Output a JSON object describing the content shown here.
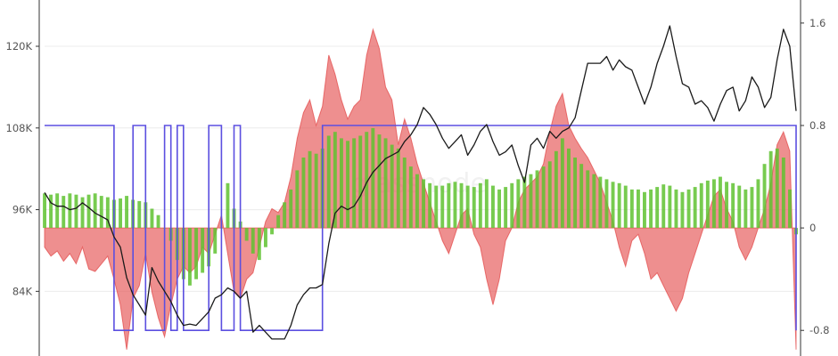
{
  "watermark": "glassnode",
  "colors": {
    "price": "#1a1a1a",
    "regime": "#5b4fe0",
    "fill_area": "#e34b4b",
    "bars": "#5fc230"
  },
  "chart_data": {
    "type": "line",
    "title": "",
    "xlabel": "",
    "ylabel": "",
    "grid": true,
    "legend": "none",
    "y_left": {
      "ticks": [
        84000,
        96000,
        108000,
        120000
      ],
      "tick_labels": [
        "84K",
        "96K",
        "108K",
        "120K"
      ],
      "range": [
        74500,
        126800
      ]
    },
    "y_right": {
      "ticks": [
        -0.8,
        0,
        0.8,
        1.6
      ],
      "tick_labels": [
        "-0.8",
        "0",
        "0.8",
        "1.6"
      ],
      "range": [
        -1.0,
        1.78
      ]
    },
    "x_count": 120,
    "series": [
      {
        "kind": "price_line",
        "axis": "left",
        "values": [
          98500,
          97000,
          96500,
          96500,
          96000,
          96200,
          97000,
          96300,
          95500,
          95000,
          94500,
          92000,
          90500,
          86000,
          83500,
          82000,
          80500,
          87500,
          85500,
          84000,
          82500,
          80500,
          79000,
          79200,
          79000,
          80000,
          81000,
          83000,
          83500,
          84500,
          84000,
          83000,
          84000,
          78000,
          79000,
          78000,
          77000,
          77000,
          77000,
          79000,
          82000,
          83500,
          84500,
          84500,
          85000,
          91000,
          95500,
          96500,
          96000,
          96500,
          98000,
          100000,
          101500,
          102500,
          103500,
          104000,
          104500,
          106000,
          107000,
          108500,
          111000,
          110000,
          108500,
          106500,
          105000,
          106000,
          107000,
          104000,
          105500,
          107500,
          108500,
          106000,
          104000,
          104500,
          105500,
          102500,
          100000,
          105500,
          106500,
          105000,
          107500,
          106500,
          107500,
          108000,
          109500,
          113500,
          117500,
          117500,
          117500,
          118500,
          116500,
          118000,
          117000,
          116500,
          114000,
          111500,
          114000,
          117500,
          120000,
          123000,
          118500,
          114500,
          114000,
          111500,
          112000,
          111000,
          109000,
          111500,
          113500,
          114000,
          110500,
          112000,
          115500,
          114000,
          111000,
          112500,
          118000,
          122500,
          120000,
          110500
        ]
      },
      {
        "kind": "red_area",
        "axis": "right",
        "values": [
          -0.15,
          -0.22,
          -0.18,
          -0.26,
          -0.2,
          -0.28,
          -0.15,
          -0.32,
          -0.34,
          -0.28,
          -0.22,
          -0.4,
          -0.6,
          -0.95,
          -0.55,
          -0.45,
          -0.2,
          -0.5,
          -0.7,
          -0.85,
          -0.6,
          -0.4,
          -0.3,
          -0.35,
          -0.3,
          -0.15,
          -0.2,
          -0.05,
          0.1,
          -0.2,
          -0.5,
          -0.55,
          -0.4,
          -0.35,
          -0.15,
          0.05,
          0.15,
          0.12,
          0.2,
          0.4,
          0.7,
          0.9,
          1.0,
          0.8,
          0.95,
          1.35,
          1.2,
          1.0,
          0.85,
          0.95,
          1.0,
          1.35,
          1.55,
          1.4,
          1.1,
          1.0,
          0.65,
          0.85,
          0.7,
          0.5,
          0.35,
          0.2,
          0.05,
          -0.1,
          -0.2,
          -0.05,
          0.1,
          0.15,
          -0.05,
          -0.15,
          -0.4,
          -0.6,
          -0.4,
          -0.1,
          0.0,
          0.2,
          0.3,
          0.35,
          0.4,
          0.5,
          0.75,
          0.95,
          1.05,
          0.8,
          0.7,
          0.62,
          0.55,
          0.45,
          0.35,
          0.2,
          0.05,
          -0.15,
          -0.3,
          -0.1,
          -0.05,
          -0.2,
          -0.4,
          -0.35,
          -0.45,
          -0.55,
          -0.65,
          -0.55,
          -0.35,
          -0.2,
          -0.05,
          0.1,
          0.25,
          0.3,
          0.15,
          0.05,
          -0.15,
          -0.25,
          -0.15,
          0.0,
          0.15,
          0.35,
          0.65,
          0.75,
          0.6,
          -0.95
        ]
      },
      {
        "kind": "green_bars",
        "axis": "right",
        "values": [
          0.27,
          0.26,
          0.27,
          0.25,
          0.27,
          0.26,
          0.24,
          0.26,
          0.27,
          0.25,
          0.24,
          0.22,
          0.23,
          0.25,
          0.22,
          0.21,
          0.2,
          0.15,
          0.1,
          0.0,
          -0.1,
          -0.25,
          -0.4,
          -0.45,
          -0.4,
          -0.35,
          -0.3,
          -0.2,
          0.0,
          0.35,
          0.15,
          0.05,
          -0.1,
          -0.2,
          -0.25,
          -0.15,
          -0.05,
          0.1,
          0.2,
          0.3,
          0.45,
          0.55,
          0.6,
          0.58,
          0.62,
          0.72,
          0.75,
          0.7,
          0.68,
          0.7,
          0.72,
          0.75,
          0.78,
          0.73,
          0.7,
          0.65,
          0.62,
          0.55,
          0.48,
          0.42,
          0.38,
          0.35,
          0.33,
          0.33,
          0.35,
          0.36,
          0.35,
          0.33,
          0.32,
          0.35,
          0.38,
          0.33,
          0.3,
          0.32,
          0.35,
          0.38,
          0.4,
          0.42,
          0.45,
          0.48,
          0.52,
          0.6,
          0.7,
          0.62,
          0.55,
          0.5,
          0.45,
          0.42,
          0.4,
          0.38,
          0.36,
          0.35,
          0.33,
          0.3,
          0.3,
          0.28,
          0.3,
          0.32,
          0.34,
          0.33,
          0.3,
          0.28,
          0.3,
          0.32,
          0.35,
          0.37,
          0.38,
          0.4,
          0.36,
          0.35,
          0.33,
          0.3,
          0.32,
          0.38,
          0.5,
          0.6,
          0.62,
          0.55,
          0.3,
          -0.05
        ]
      },
      {
        "kind": "regime_step",
        "axis": "right",
        "values": [
          0.8,
          0.8,
          0.8,
          0.8,
          0.8,
          0.8,
          0.8,
          0.8,
          0.8,
          0.8,
          0.8,
          -0.8,
          -0.8,
          -0.8,
          0.8,
          0.8,
          -0.8,
          -0.8,
          -0.8,
          0.8,
          -0.8,
          0.8,
          -0.8,
          -0.8,
          -0.8,
          -0.8,
          0.8,
          0.8,
          -0.8,
          -0.8,
          0.8,
          -0.8,
          -0.8,
          -0.8,
          -0.8,
          -0.8,
          -0.8,
          -0.8,
          -0.8,
          -0.8,
          -0.8,
          -0.8,
          -0.8,
          -0.8,
          0.8,
          0.8,
          0.8,
          0.8,
          0.8,
          0.8,
          0.8,
          0.8,
          0.8,
          0.8,
          0.8,
          0.8,
          0.8,
          0.8,
          0.8,
          0.8,
          0.8,
          0.8,
          0.8,
          0.8,
          0.8,
          0.8,
          0.8,
          0.8,
          0.8,
          0.8,
          0.8,
          0.8,
          0.8,
          0.8,
          0.8,
          0.8,
          0.8,
          0.8,
          0.8,
          0.8,
          0.8,
          0.8,
          0.8,
          0.8,
          0.8,
          0.8,
          0.8,
          0.8,
          0.8,
          0.8,
          0.8,
          0.8,
          0.8,
          0.8,
          0.8,
          0.8,
          0.8,
          0.8,
          0.8,
          0.8,
          0.8,
          0.8,
          0.8,
          0.8,
          0.8,
          0.8,
          0.8,
          0.8,
          0.8,
          0.8,
          0.8,
          0.8,
          0.8,
          0.8,
          0.8,
          0.8,
          0.8,
          0.8,
          0.8,
          -0.8
        ]
      }
    ]
  }
}
